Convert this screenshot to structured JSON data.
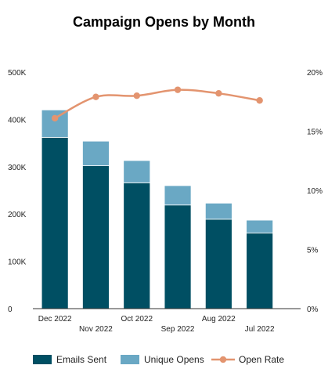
{
  "chart_data": {
    "type": "bar",
    "title": "Campaign Opens by Month",
    "categories": [
      "Dec 2022",
      "Nov 2022",
      "Oct 2022",
      "Sep 2022",
      "Aug 2022",
      "Jul 2022"
    ],
    "series": [
      {
        "name": "Emails Sent",
        "kind": "bar",
        "stack": "a",
        "color": "#004f63",
        "values": [
          362000,
          302000,
          266000,
          219000,
          189000,
          160000
        ]
      },
      {
        "name": "Unique Opens",
        "kind": "bar",
        "stack": "a",
        "color": "#6aa8c4",
        "values": [
          58000,
          52000,
          47000,
          41000,
          34000,
          27000
        ]
      },
      {
        "name": "Open Rate",
        "kind": "line",
        "axis": "right",
        "color": "#e3946f",
        "values": [
          16.1,
          17.9,
          18.0,
          18.5,
          18.2,
          17.6
        ]
      }
    ],
    "y_left": {
      "min": 0,
      "max": 500000,
      "ticks": [
        0,
        100000,
        200000,
        300000,
        400000,
        500000
      ],
      "tick_labels": [
        "0",
        "100K",
        "200K",
        "300K",
        "400K",
        "500K"
      ]
    },
    "y_right": {
      "min": 0,
      "max": 20,
      "ticks": [
        0,
        5,
        10,
        15,
        20
      ],
      "tick_labels": [
        "0%",
        "5%",
        "10%",
        "15%",
        "20%"
      ]
    },
    "stacked": true,
    "grid": false,
    "legend_position": "bottom"
  }
}
